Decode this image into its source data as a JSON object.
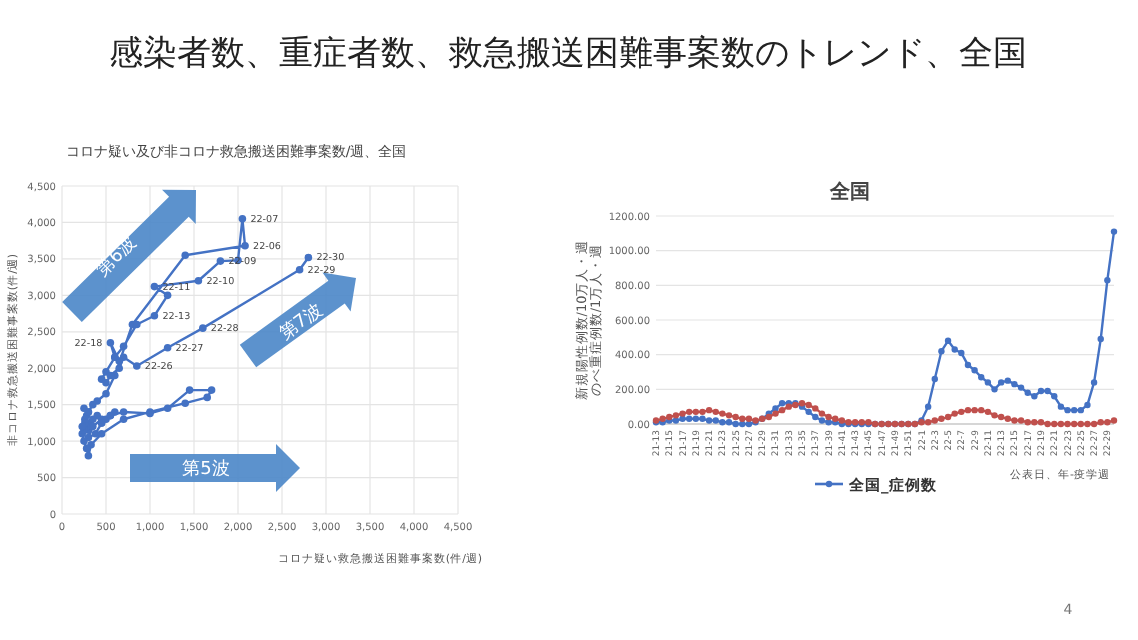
{
  "chart_data": [
    {
      "type": "other",
      "title": "感染者数、重症者数、救急搬送困難事案数のトレンド、全国",
      "annotations": [
        "4"
      ]
    },
    {
      "type": "line",
      "title": "コロナ疑い及び非コロナ救急搬送困難事案数/週、全国",
      "xlabel": "コロナ疑い救急搬送困難事案数(件/週)",
      "ylabel": "非コロナ救急搬送困難事案数(件/週)",
      "xlim": [
        0,
        4500
      ],
      "ylim": [
        0,
        4500
      ],
      "xticks": [
        0,
        500,
        {
          "value": 1000,
          "label": "1,000"
        },
        {
          "value": 1500,
          "label": "1,500"
        },
        {
          "value": 2000,
          "label": "2,000"
        },
        {
          "value": 2500,
          "label": "2,500"
        },
        {
          "value": 3000,
          "label": "3,000"
        },
        {
          "value": 3500,
          "label": "3,500"
        },
        {
          "value": 4000,
          "label": "4,000"
        },
        {
          "value": 4500,
          "label": "4,500"
        }
      ],
      "yticks": [
        0,
        500,
        {
          "value": 1000,
          "label": "1,000"
        },
        {
          "value": 1500,
          "label": "1,500"
        },
        {
          "value": 2000,
          "label": "2,000"
        },
        {
          "value": 2500,
          "label": "2,500"
        },
        {
          "value": 3000,
          "label": "3,000"
        },
        {
          "value": 3500,
          "label": "3,500"
        },
        {
          "value": 4000,
          "label": "4,000"
        },
        {
          "value": 4500,
          "label": "4,500"
        }
      ],
      "grid": true,
      "marker": "circle",
      "x": [
        300,
        320,
        280,
        350,
        400,
        450,
        380,
        300,
        350,
        450,
        550,
        600,
        500,
        450,
        550,
        700,
        1000,
        1200,
        1450,
        1700,
        1650,
        1400,
        1000,
        700,
        450,
        330,
        300,
        280,
        250,
        230,
        250,
        260,
        250,
        230,
        260,
        280,
        300,
        250,
        300,
        350,
        400,
        500,
        600,
        800,
        1400,
        2080,
        2050,
        2000,
        1800,
        1550,
        1050,
        1200,
        1050,
        850,
        700,
        600,
        650,
        550,
        600,
        500,
        450,
        500,
        550,
        650,
        700,
        850,
        1200,
        1600,
        2700,
        2800
      ],
      "series": [
        {
          "color": "#4472c4",
          "values": [
            1150,
            1250,
            1200,
            1300,
            1350,
            1250,
            1100,
            1050,
            1200,
            1300,
            1350,
            1400,
            1300,
            1250,
            1350,
            1400,
            1380,
            1450,
            1700,
            1700,
            1600,
            1520,
            1400,
            1300,
            1100,
            950,
            800,
            900,
            1000,
            1100,
            1200,
            1250,
            1150,
            1200,
            1300,
            1350,
            1400,
            1450,
            1400,
            1500,
            1550,
            1650,
            1900,
            2600,
            3550,
            3680,
            4050,
            3480,
            3470,
            3200,
            3120,
            3000,
            2720,
            2600,
            2300,
            2150,
            2100,
            2350,
            2150,
            1950,
            1850,
            1800,
            1900,
            2000,
            2150,
            2030,
            2280,
            2550,
            3350,
            3520
          ]
        }
      ],
      "annotations": [
        {
          "text": "22-07",
          "x": 2050,
          "y": 4050
        },
        {
          "text": "22-06",
          "x": 2080,
          "y": 3680
        },
        {
          "text": "22-09",
          "x": 1800,
          "y": 3470
        },
        {
          "text": "22-10",
          "x": 1550,
          "y": 3200
        },
        {
          "text": "22-11",
          "x": 1050,
          "y": 3120
        },
        {
          "text": "22-13",
          "x": 1050,
          "y": 2720
        },
        {
          "text": "22-18",
          "x": 550,
          "y": 2350
        },
        {
          "text": "22-26",
          "x": 850,
          "y": 2030
        },
        {
          "text": "22-27",
          "x": 1200,
          "y": 2280
        },
        {
          "text": "22-28",
          "x": 1600,
          "y": 2550
        },
        {
          "text": "22-29",
          "x": 2700,
          "y": 3350
        },
        {
          "text": "22-30",
          "x": 2800,
          "y": 3520
        },
        "第6波",
        "第7波",
        "第5波"
      ]
    },
    {
      "type": "line",
      "title": "全国",
      "xlabel": "公表日、年-疫学週",
      "ylabel": "新規陽性例数/10万人・週のべ重症例数/1万人・週",
      "categories": [
        "21-13",
        null,
        "21-15",
        null,
        "21-17",
        null,
        "21-19",
        null,
        "21-21",
        null,
        "21-23",
        null,
        "21-25",
        null,
        "21-27",
        null,
        "21-29",
        null,
        "21-31",
        null,
        "21-33",
        null,
        "21-35",
        null,
        "21-37",
        null,
        "21-39",
        null,
        "21-41",
        null,
        "21-43",
        null,
        "21-45",
        null,
        "21-47",
        null,
        "21-49",
        null,
        "21-51",
        null,
        "22-1",
        null,
        "22-3",
        null,
        "22-5",
        null,
        "22-7",
        null,
        "22-9",
        null,
        "22-11",
        null,
        "22-13",
        null,
        "22-15",
        null,
        "22-17",
        null,
        "22-19",
        null,
        "22-21",
        null,
        "22-23",
        null,
        "22-25",
        null,
        "22-27",
        null,
        "22-29",
        null
      ],
      "ylim": [
        0,
        1200
      ],
      "yticks": [
        {
          "value": 0,
          "label": "0.00"
        },
        {
          "value": 200,
          "label": "200.00"
        },
        {
          "value": 400,
          "label": "400.00"
        },
        {
          "value": 600,
          "label": "600.00"
        },
        {
          "value": 800,
          "label": "800.00"
        },
        {
          "value": 1000,
          "label": "1000.00"
        },
        {
          "value": 1200,
          "label": "1200.00"
        }
      ],
      "grid": "y",
      "legend": "bottom",
      "marker": "circle",
      "series": [
        {
          "name": "全国_症例数",
          "color": "#4472c4",
          "values": [
            10,
            10,
            20,
            20,
            30,
            30,
            30,
            30,
            20,
            20,
            10,
            10,
            0,
            0,
            0,
            10,
            30,
            60,
            90,
            120,
            120,
            120,
            100,
            70,
            40,
            20,
            10,
            10,
            0,
            0,
            0,
            0,
            0,
            0,
            0,
            0,
            0,
            0,
            0,
            0,
            20,
            100,
            260,
            420,
            480,
            430,
            410,
            340,
            310,
            270,
            240,
            200,
            240,
            250,
            230,
            210,
            180,
            160,
            190,
            190,
            160,
            100,
            80,
            80,
            80,
            110,
            240,
            490,
            830,
            1110
          ]
        },
        {
          "color": "#c0504d",
          "values": [
            20,
            30,
            40,
            50,
            60,
            70,
            70,
            70,
            80,
            70,
            60,
            50,
            40,
            30,
            30,
            20,
            30,
            40,
            60,
            80,
            100,
            110,
            120,
            110,
            90,
            60,
            40,
            30,
            20,
            10,
            10,
            10,
            10,
            0,
            0,
            0,
            0,
            0,
            0,
            0,
            10,
            10,
            20,
            30,
            40,
            60,
            70,
            80,
            80,
            80,
            70,
            50,
            40,
            30,
            20,
            20,
            10,
            10,
            10,
            0,
            0,
            0,
            0,
            0,
            0,
            0,
            0,
            10,
            10,
            20
          ]
        }
      ]
    }
  ]
}
